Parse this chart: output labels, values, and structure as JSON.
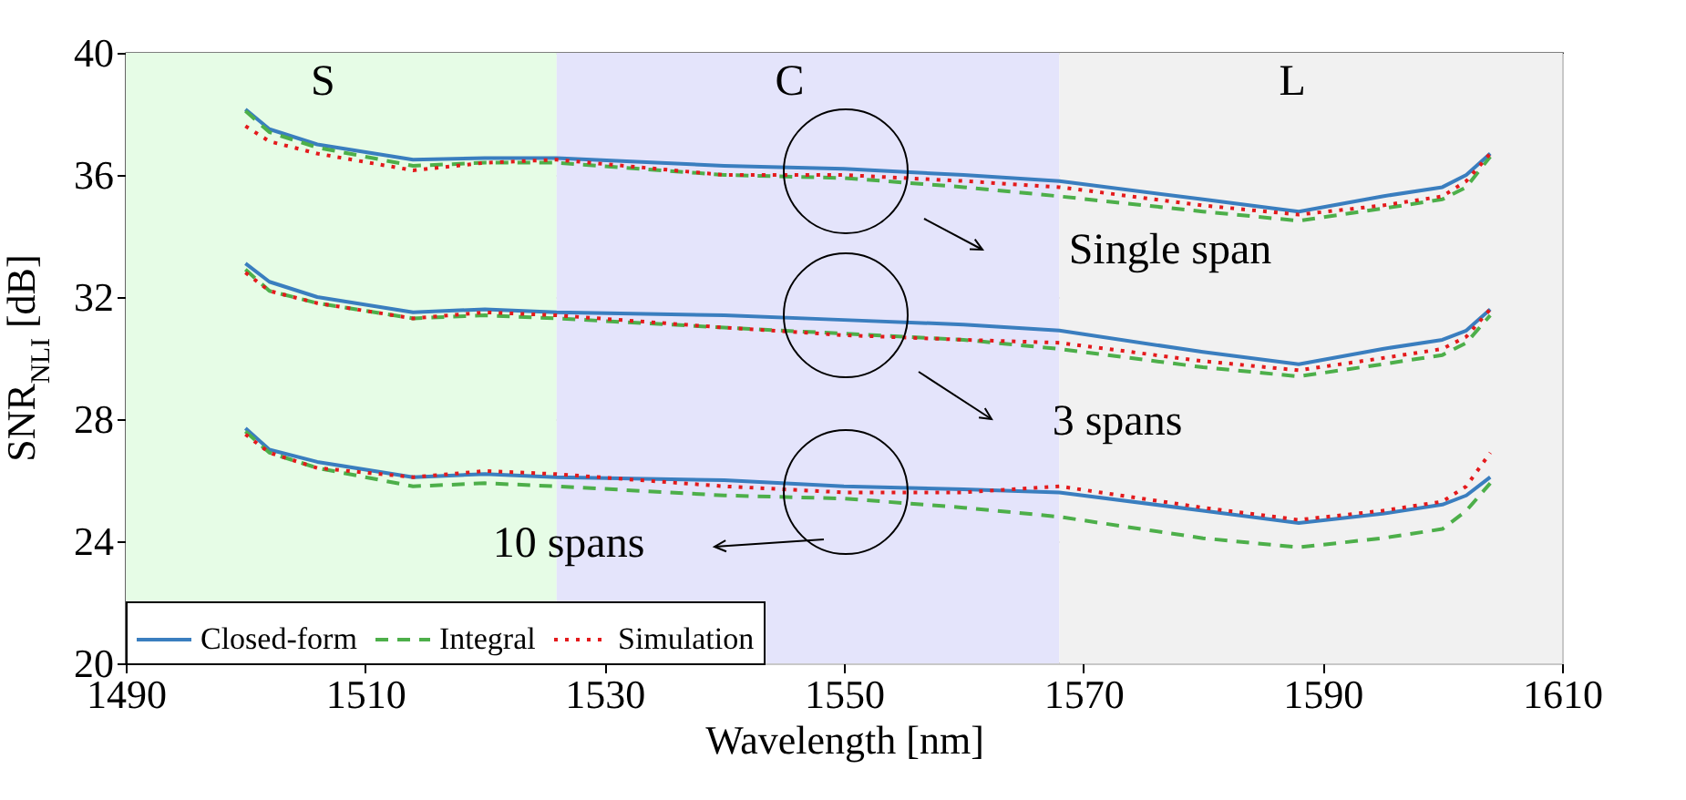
{
  "chart_data": {
    "type": "line",
    "xlabel": "Wavelength [nm]",
    "ylabel": "SNR$_{NLI}$ [dB]",
    "x": [
      1500,
      1502,
      1506,
      1514,
      1520,
      1526,
      1540,
      1550,
      1560,
      1568,
      1580,
      1588,
      1595,
      1600,
      1602,
      1604
    ],
    "series": [
      {
        "name": "Closed-form",
        "color": "#3a7ebf",
        "line_style": "solid",
        "values": [
          38.15,
          37.5,
          37.0,
          36.5,
          36.55,
          36.55,
          36.3,
          36.2,
          36.0,
          35.8,
          35.2,
          34.8,
          35.3,
          35.6,
          36.0,
          36.7
        ]
      },
      {
        "name": "Integral",
        "color": "#4daf4a",
        "line_style": "dashed",
        "values": [
          38.1,
          37.4,
          36.9,
          36.3,
          36.4,
          36.4,
          36.0,
          35.9,
          35.6,
          35.3,
          34.8,
          34.5,
          34.9,
          35.2,
          35.6,
          36.6
        ]
      },
      {
        "name": "Simulation",
        "color": "#e41a1c",
        "line_style": "dotted",
        "values": [
          37.6,
          37.1,
          36.7,
          36.15,
          36.4,
          36.5,
          36.0,
          36.0,
          35.8,
          35.6,
          35.0,
          34.7,
          35.0,
          35.3,
          35.8,
          36.7
        ]
      },
      {
        "color": "#3a7ebf",
        "line_style": "solid",
        "values": [
          33.1,
          32.5,
          32.0,
          31.5,
          31.6,
          31.5,
          31.4,
          31.25,
          31.1,
          30.9,
          30.2,
          29.8,
          30.3,
          30.6,
          30.9,
          31.6
        ]
      },
      {
        "color": "#4daf4a",
        "line_style": "dashed",
        "values": [
          32.9,
          32.2,
          31.8,
          31.3,
          31.4,
          31.3,
          31.0,
          30.8,
          30.6,
          30.3,
          29.7,
          29.4,
          29.8,
          30.1,
          30.5,
          31.4
        ]
      },
      {
        "color": "#e41a1c",
        "line_style": "dotted",
        "values": [
          32.8,
          32.2,
          31.8,
          31.3,
          31.5,
          31.4,
          31.0,
          30.75,
          30.6,
          30.5,
          29.9,
          29.6,
          30.0,
          30.3,
          30.7,
          31.6
        ]
      },
      {
        "color": "#3a7ebf",
        "line_style": "solid",
        "values": [
          27.7,
          27.0,
          26.6,
          26.1,
          26.2,
          26.1,
          26.0,
          25.8,
          25.7,
          25.6,
          25.0,
          24.6,
          24.9,
          25.2,
          25.5,
          26.1
        ]
      },
      {
        "color": "#4daf4a",
        "line_style": "dashed",
        "values": [
          27.6,
          26.9,
          26.4,
          25.8,
          25.9,
          25.8,
          25.5,
          25.4,
          25.1,
          24.8,
          24.1,
          23.8,
          24.1,
          24.4,
          25.0,
          25.9
        ]
      },
      {
        "color": "#e41a1c",
        "line_style": "dotted",
        "values": [
          27.5,
          26.9,
          26.4,
          26.1,
          26.3,
          26.2,
          25.8,
          25.6,
          25.6,
          25.8,
          25.1,
          24.7,
          25.0,
          25.3,
          25.8,
          26.9
        ]
      }
    ],
    "xlim": [
      1490,
      1610
    ],
    "xticks": [
      1490,
      1510,
      1530,
      1550,
      1570,
      1590,
      1610
    ],
    "ylim": [
      20,
      40
    ],
    "yticks": [
      20,
      24,
      28,
      32,
      36,
      40
    ],
    "bands": [
      {
        "axis": "x",
        "from": 1490,
        "to": 1526,
        "label": "S",
        "color": "#e6fce6"
      },
      {
        "axis": "x",
        "from": 1526,
        "to": 1568,
        "label": "C",
        "color": "#e4e4fb"
      },
      {
        "axis": "x",
        "from": 1568,
        "to": 1610,
        "label": "L",
        "color": "#f1f1f1"
      }
    ],
    "annotations": [
      "Single span",
      "3 spans",
      "10 spans"
    ],
    "grid": true,
    "legend": "bottom left"
  }
}
